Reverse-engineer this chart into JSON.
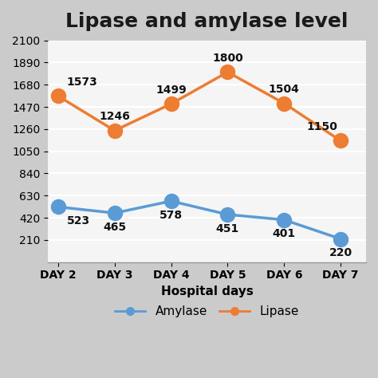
{
  "title": "Lipase and amylase level",
  "xlabel": "Hospital days",
  "days": [
    "DAY 2",
    "DAY 3",
    "DAY 4",
    "DAY 5",
    "DAY 6",
    "DAY 7"
  ],
  "amylase": [
    523,
    465,
    578,
    451,
    401,
    220
  ],
  "lipase": [
    1573,
    1246,
    1499,
    1800,
    1504,
    1150
  ],
  "amylase_color": "#5B9BD5",
  "lipase_color": "#ED7D31",
  "bg_color": "#CBCBCB",
  "plot_bg_color": "#F5F5F5",
  "title_fontsize": 18,
  "label_fontsize": 11,
  "tick_fontsize": 10,
  "annotation_fontsize": 10,
  "ylim_min": 0,
  "ylim_max": 2100,
  "gridline_color": "#FFFFFF",
  "gridline_count": 10,
  "marker_size": 13,
  "line_width": 2.5,
  "xlim_min": -0.18,
  "xlim_max": 5.45
}
